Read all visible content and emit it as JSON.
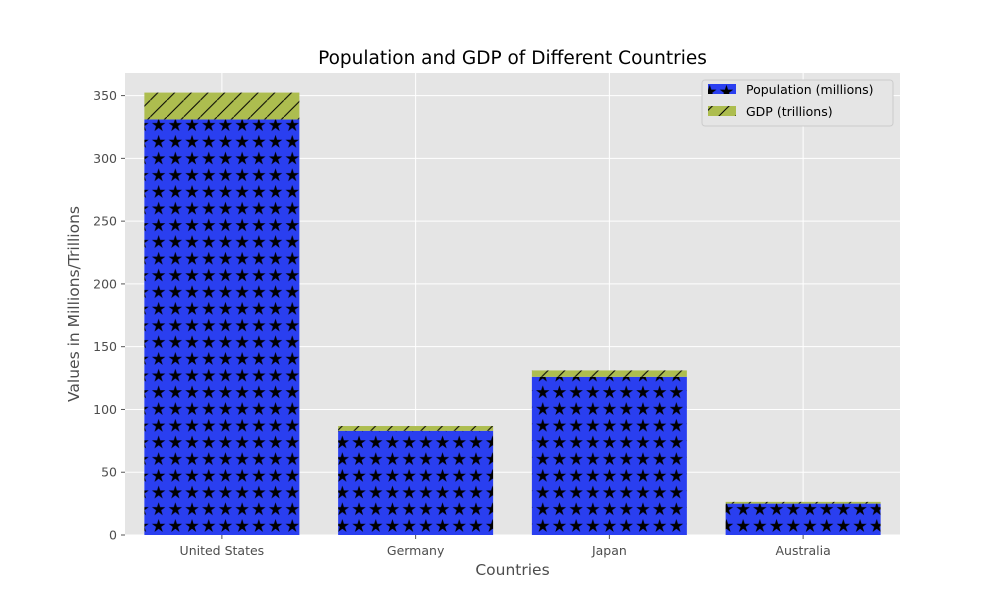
{
  "chart_data": {
    "type": "bar",
    "stacked": true,
    "title": "Population and GDP of Different Countries",
    "xlabel": "Countries",
    "ylabel": "Values in Millions/Trillions",
    "categories": [
      "United States",
      "Germany",
      "Japan",
      "Australia"
    ],
    "series": [
      {
        "name": "Population (millions)",
        "values": [
          331,
          83,
          126,
          25
        ],
        "color": "#2a3ff0",
        "hatch": "stars"
      },
      {
        "name": "GDP (trillions)",
        "values": [
          21.4,
          3.8,
          5.1,
          1.4
        ],
        "color": "#adbd4f",
        "hatch": "diagonal"
      }
    ],
    "ylim": [
      0,
      368
    ],
    "yticks": [
      0,
      50,
      100,
      150,
      200,
      250,
      300,
      350
    ],
    "grid": true,
    "background": "#e5e5e5",
    "legend": "top-right"
  }
}
